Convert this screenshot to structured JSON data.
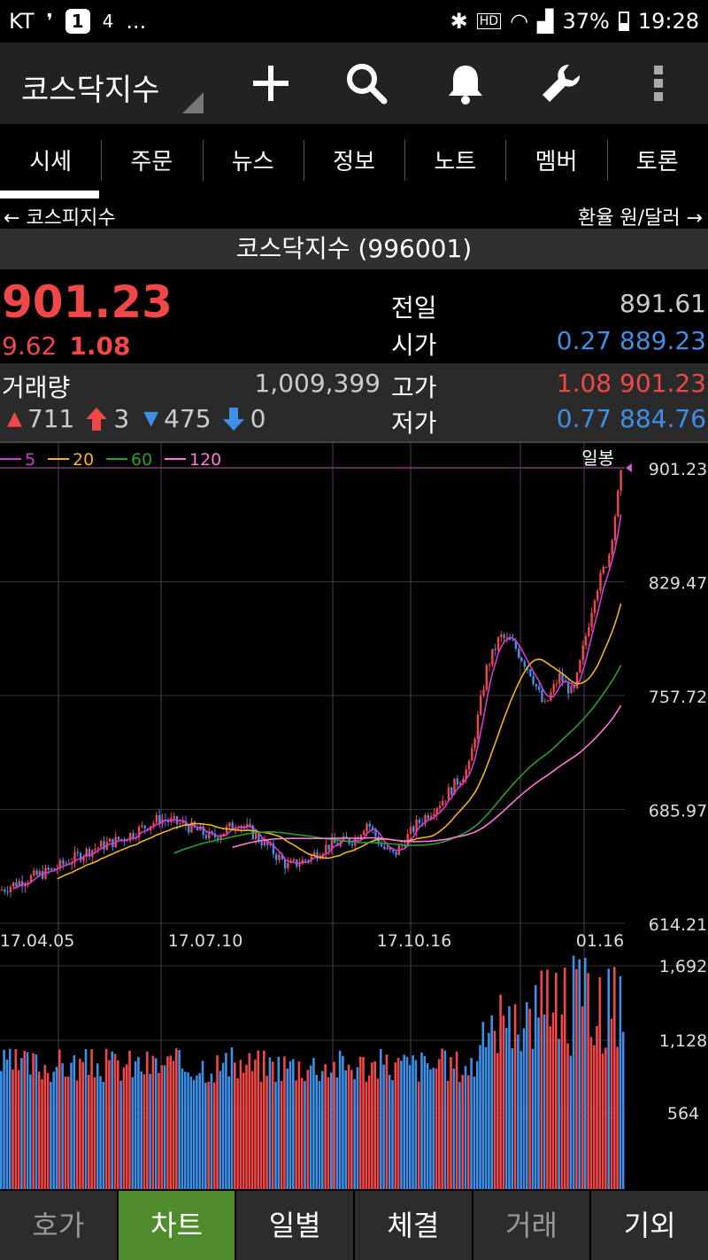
{
  "status_bar": {
    "carrier": "KT",
    "notif_count": "1",
    "net": "4",
    "more": "...",
    "battery": "37%",
    "time": "19:28"
  },
  "app_bar": {
    "title": "코스닥지수"
  },
  "tabs": [
    {
      "label": "시세",
      "active": true
    },
    {
      "label": "주문"
    },
    {
      "label": "뉴스"
    },
    {
      "label": "정보"
    },
    {
      "label": "노트"
    },
    {
      "label": "멤버"
    },
    {
      "label": "토론"
    }
  ],
  "nav": {
    "prev": "← 코스피지수",
    "next": "환율 원/달러 →"
  },
  "instrument": {
    "name": "코스닥지수 (996001)"
  },
  "quote": {
    "price": "901.23",
    "change": "9.62",
    "change_pct": "1.08",
    "prev_label": "전일",
    "prev_value": "891.61",
    "open_label": "시가",
    "open_diff": "0.27",
    "open_value": "889.23",
    "high_label": "고가",
    "high_diff": "1.08",
    "high_value": "901.23",
    "low_label": "저가",
    "low_diff": "0.77",
    "low_value": "884.76",
    "volume_label": "거래량",
    "volume_value": "1,009,399",
    "up_count": "711",
    "upper_limit_count": "3",
    "down_count": "475",
    "lower_limit_count": "0"
  },
  "chart_data": {
    "type": "candlestick",
    "period_label": "일봉",
    "ma_legend": [
      {
        "label": "5",
        "color": "#d23cd2"
      },
      {
        "label": "20",
        "color": "#f0b41e"
      },
      {
        "label": "60",
        "color": "#28a028"
      },
      {
        "label": "120",
        "color": "#ff78dc"
      }
    ],
    "price_axis_ticks": [
      "901.23",
      "829.47",
      "757.72",
      "685.97",
      "614.21"
    ],
    "ylim": [
      614.21,
      901.23
    ],
    "date_labels": [
      "17.04.05",
      "17.07.10",
      "17.10.16",
      "01.16"
    ],
    "volume_axis_ticks": [
      "1,692",
      "1,128",
      "564"
    ],
    "current_price": 901.23
  },
  "bottom_tabs": [
    {
      "label": "호가",
      "dim": true
    },
    {
      "label": "차트",
      "active": true
    },
    {
      "label": "일별"
    },
    {
      "label": "체결"
    },
    {
      "label": "거래",
      "dim": true
    },
    {
      "label": "기외"
    }
  ]
}
